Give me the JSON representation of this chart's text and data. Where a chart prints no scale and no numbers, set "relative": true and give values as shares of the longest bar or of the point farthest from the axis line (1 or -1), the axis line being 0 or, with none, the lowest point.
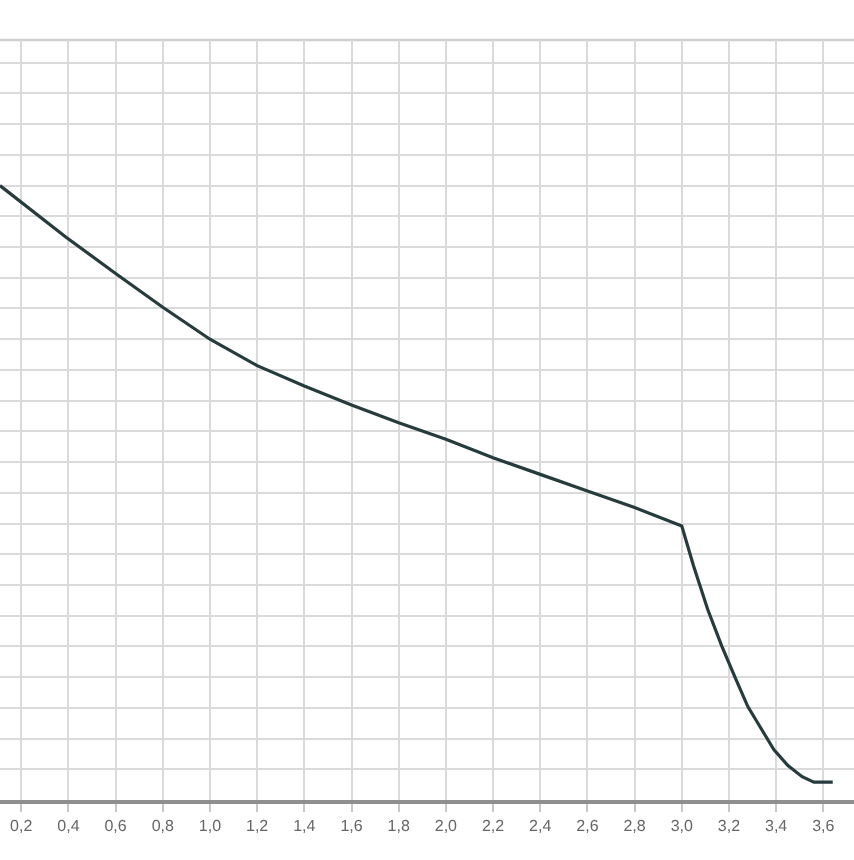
{
  "chart_data": {
    "type": "line",
    "relative": true,
    "color": "#263c3c",
    "grid": true,
    "x": [
      0.11,
      0.39,
      0.6,
      0.8,
      1.0,
      1.2,
      1.4,
      1.6,
      1.8,
      2.0,
      2.2,
      2.4,
      2.6,
      2.8,
      3.0,
      3.05,
      3.11,
      3.17,
      3.23,
      3.28,
      3.34,
      3.39,
      3.45,
      3.51,
      3.56,
      3.64
    ],
    "values": [
      1.0,
      0.916,
      0.857,
      0.802,
      0.75,
      0.707,
      0.674,
      0.643,
      0.614,
      0.587,
      0.557,
      0.53,
      0.503,
      0.476,
      0.446,
      0.381,
      0.31,
      0.25,
      0.196,
      0.152,
      0.114,
      0.082,
      0.056,
      0.038,
      0.029,
      0.029
    ],
    "xlim": [
      0.11,
      3.73
    ],
    "xticks": [
      {
        "value": 0.2,
        "label": "0,2"
      },
      {
        "value": 0.4,
        "label": "0,4"
      },
      {
        "value": 0.6,
        "label": "0,6"
      },
      {
        "value": 0.8,
        "label": "0,8"
      },
      {
        "value": 1.0,
        "label": "1,0"
      },
      {
        "value": 1.2,
        "label": "1,2"
      },
      {
        "value": 1.4,
        "label": "1,4"
      },
      {
        "value": 1.6,
        "label": "1,6"
      },
      {
        "value": 1.8,
        "label": "1,8"
      },
      {
        "value": 2.0,
        "label": "2,0"
      },
      {
        "value": 2.2,
        "label": "2,2"
      },
      {
        "value": 2.4,
        "label": "2,4"
      },
      {
        "value": 2.6,
        "label": "2,6"
      },
      {
        "value": 2.8,
        "label": "2,8"
      },
      {
        "value": 3.0,
        "label": "3,0"
      },
      {
        "value": 3.2,
        "label": "3,2"
      },
      {
        "value": 3.4,
        "label": "3,4"
      },
      {
        "value": 3.6,
        "label": "3,6"
      }
    ]
  }
}
